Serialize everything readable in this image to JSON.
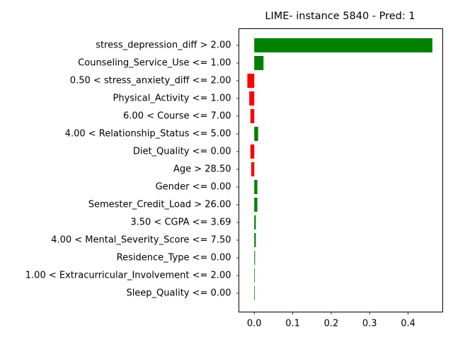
{
  "chart_data": {
    "type": "bar",
    "orientation": "horizontal",
    "title": "LIME- instance 5840 - Pred: 1",
    "xlabel": "",
    "ylabel": "",
    "xlim": [
      -0.04,
      0.49
    ],
    "xticks": [
      0.0,
      0.1,
      0.2,
      0.3,
      0.4
    ],
    "xtick_labels": [
      "0.0",
      "0.1",
      "0.2",
      "0.3",
      "0.4"
    ],
    "grid": false,
    "categories": [
      "stress_depression_diff > 2.00",
      "Counseling_Service_Use <= 1.00",
      "0.50 < stress_anxiety_diff <= 2.00",
      "Physical_Activity <= 1.00",
      "6.00 < Course <= 7.00",
      "4.00 < Relationship_Status <= 5.00",
      "Diet_Quality <= 0.00",
      "Age > 28.50",
      "Gender <= 0.00",
      "Semester_Credit_Load > 26.00",
      "3.50 < CGPA <= 3.69",
      "4.00 < Mental_Severity_Score <= 7.50",
      "Residence_Type <= 0.00",
      "1.00 < Extracurricular_Involvement <= 2.00",
      "Sleep_Quality <= 0.00"
    ],
    "values": [
      0.463,
      0.024,
      -0.018,
      -0.013,
      -0.01,
      0.01,
      -0.01,
      -0.008,
      0.008,
      0.008,
      0.004,
      0.004,
      0.002,
      0.0,
      0.0
    ],
    "colors": {
      "positive": "#008000",
      "negative": "#ff0000"
    }
  }
}
